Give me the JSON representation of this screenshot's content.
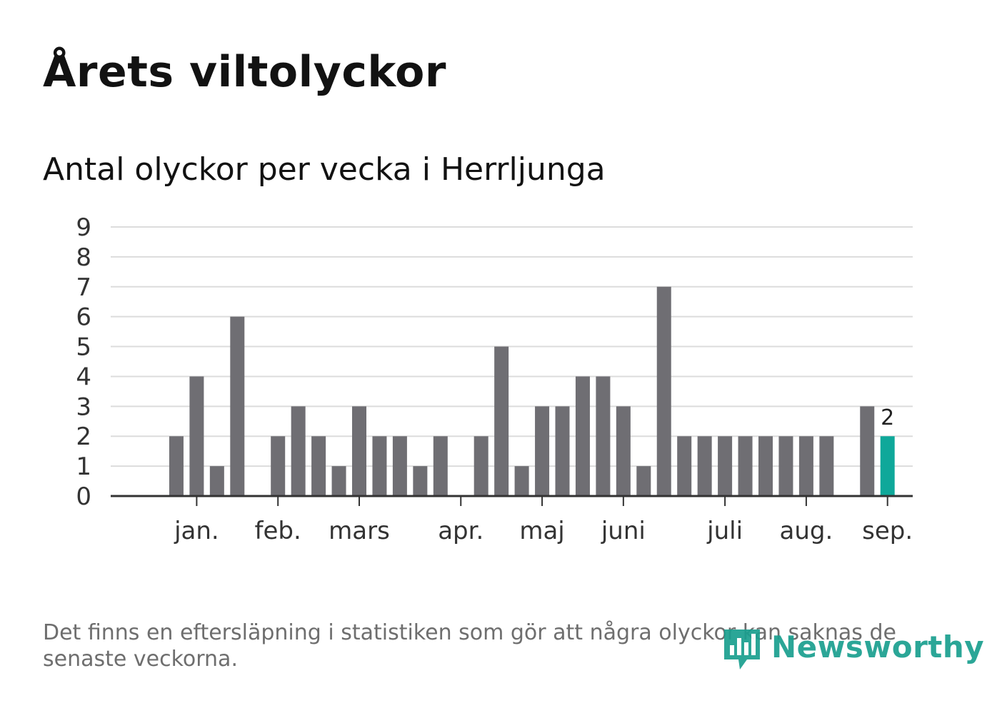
{
  "header": {
    "title": "Årets viltolyckor",
    "subtitle": "Antal olyckor per vecka i Herrljunga"
  },
  "footer": {
    "note": "Det finns en eftersläpning i statistiken som gör att några olyckor kan saknas de senaste veckorna.",
    "brand": "Newsworthy"
  },
  "colors": {
    "bar": "#6f6e73",
    "highlight": "#0fa89a",
    "grid": "#dcdcdc",
    "axis": "#333333",
    "text": "#333333"
  },
  "chart_data": {
    "type": "bar",
    "title": "Antal olyckor per vecka i Herrljunga",
    "xlabel": "",
    "ylabel": "",
    "ylim": [
      0,
      9
    ],
    "yticks": [
      0,
      1,
      2,
      3,
      4,
      5,
      6,
      7,
      8,
      9
    ],
    "grid": true,
    "month_labels": [
      "jan.",
      "feb.",
      "mars",
      "apr.",
      "maj",
      "juni",
      "juli",
      "aug.",
      "sep."
    ],
    "month_label_weeks": [
      3,
      7,
      11,
      16,
      20,
      24,
      29,
      33,
      37
    ],
    "weeks": [
      1,
      2,
      3,
      4,
      5,
      6,
      7,
      8,
      9,
      10,
      11,
      12,
      13,
      14,
      15,
      16,
      17,
      18,
      19,
      20,
      21,
      22,
      23,
      24,
      25,
      26,
      27,
      28,
      29,
      30,
      31,
      32,
      33,
      34,
      35,
      36,
      37,
      38
    ],
    "values": [
      0,
      2,
      4,
      1,
      6,
      0,
      2,
      3,
      2,
      1,
      3,
      2,
      2,
      1,
      2,
      0,
      2,
      5,
      1,
      3,
      3,
      4,
      4,
      3,
      1,
      7,
      2,
      2,
      2,
      2,
      2,
      2,
      2,
      2,
      0,
      3,
      2,
      null
    ],
    "highlight_index": 36,
    "highlight_label": "2"
  }
}
